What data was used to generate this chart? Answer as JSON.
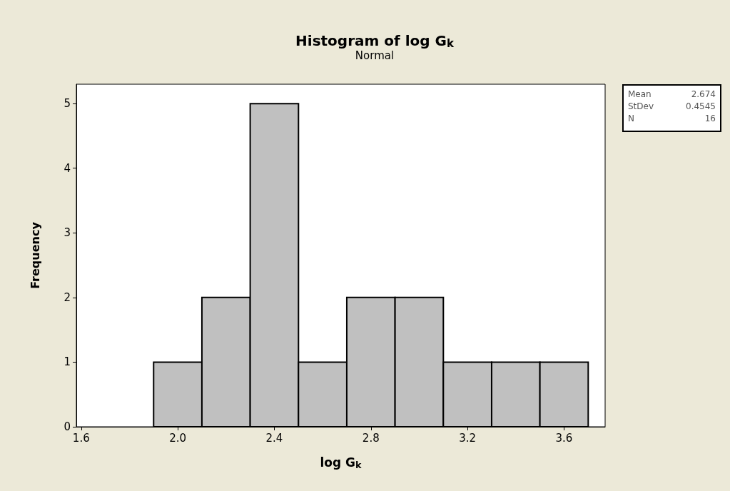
{
  "chart_data": {
    "type": "histogram",
    "title": "Histogram of log G$_{k}$",
    "subtitle": "Normal",
    "xlabel": "log G$_{k}$",
    "ylabel": "Frequency",
    "bins": [
      1.9,
      2.1,
      2.3,
      2.5,
      2.7,
      2.9,
      3.1,
      3.3,
      3.5,
      3.7
    ],
    "values": [
      1,
      2,
      5,
      1,
      2,
      2,
      1,
      1,
      1
    ],
    "color": "#c0c0c0",
    "xlim": [
      1.58,
      3.77
    ],
    "xticks": [
      1.6,
      {
        "value": 2,
        "label": "2.0"
      },
      2.4,
      2.8,
      3.2,
      3.6
    ],
    "ylim": [
      0,
      5.3
    ],
    "yticks": [
      0,
      1,
      2,
      3,
      4,
      5
    ],
    "grid": false,
    "annotations": [
      "Mean 2.674",
      "StDev 0.4545",
      "N 16"
    ]
  }
}
